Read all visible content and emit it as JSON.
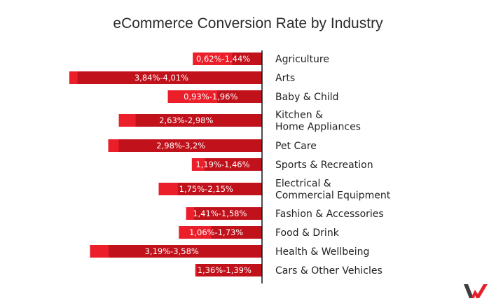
{
  "chart_data": {
    "type": "bar",
    "orientation": "horizontal",
    "title": "eCommerce Conversion Rate by Industry",
    "categories": [
      "Agriculture",
      "Arts",
      "Baby & Child",
      "Kitchen &\nHome Appliances",
      "Pet Care",
      "Sports & Recreation",
      "Electrical &\nCommercial Equipment",
      "Fashion & Accessories",
      "Food & Drink",
      "Health & Wellbeing",
      "Cars & Other Vehicles"
    ],
    "series": [
      {
        "values_low": [
          0.62,
          3.84,
          0.93,
          2.63,
          2.98,
          1.19,
          1.75,
          1.41,
          1.06,
          3.19,
          1.36
        ],
        "values_high": [
          1.44,
          4.01,
          1.96,
          2.98,
          3.2,
          1.46,
          2.15,
          1.58,
          1.73,
          3.58,
          1.39
        ]
      }
    ],
    "data_labels": [
      "0,62%-1,44%",
      "3,84%-4,01%",
      "0,93%-1,96%",
      "2,63%-2,98%",
      "2,98%-3,2%",
      "1,19%-1,46%",
      "1,75%-2,15%",
      "1,41%-1,58%",
      "1,06%-1,73%",
      "3,19%-3,58%",
      "1,36%-1,39%"
    ],
    "xlabel": "",
    "ylabel": "",
    "grid": false,
    "colors": {
      "low": "#c1121c",
      "high": "#ea1f2a",
      "axis": "#111111"
    }
  },
  "logo": {
    "text": "W"
  }
}
